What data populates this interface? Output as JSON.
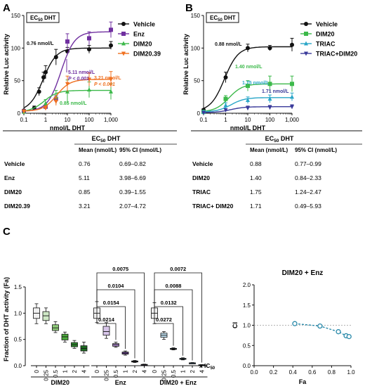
{
  "chart_data": [
    {
      "panel": "A",
      "type": "line",
      "badge": "EC50 DHT",
      "xlabel": "nmol/L DHT",
      "ylabel": "Relative Luc activity",
      "xscale": "log",
      "xlim": [
        0.1,
        1000
      ],
      "ylim": [
        0,
        150
      ],
      "xticks": [
        "0.1",
        "1",
        "10",
        "100",
        "1,000"
      ],
      "yticks": [
        "0",
        "50",
        "100",
        "150"
      ],
      "legend_position": "right",
      "series": [
        {
          "name": "Vehicle",
          "color": "#111111",
          "marker": "circle",
          "x": [
            0.1,
            0.3,
            0.5,
            0.8,
            1,
            3,
            10,
            100,
            1000
          ],
          "y": [
            4,
            8,
            33,
            55,
            63,
            86,
            95,
            98,
            104
          ],
          "err": [
            2,
            3,
            6,
            8,
            10,
            12,
            6,
            6,
            6
          ],
          "ec50": 0.76,
          "top": 100
        },
        {
          "name": "Enz",
          "color": "#7030a0",
          "marker": "square",
          "x": [
            0.1,
            1,
            3,
            10,
            100,
            1000
          ],
          "y": [
            3,
            10,
            22,
            110,
            115,
            128
          ],
          "err": [
            2,
            3,
            5,
            12,
            10,
            12
          ],
          "ec50": 5.11,
          "top": 125
        },
        {
          "name": "DIM20",
          "color": "#3cb94a",
          "marker": "triangle-up",
          "x": [
            0.1,
            1,
            3,
            10,
            100,
            1000
          ],
          "y": [
            2,
            15,
            25,
            33,
            36,
            33
          ],
          "err": [
            2,
            6,
            10,
            18,
            12,
            12
          ],
          "ec50": 0.85,
          "top": 35
        },
        {
          "name": "DIM20.39",
          "color": "#f07020",
          "marker": "triangle-down",
          "x": [
            0.1,
            1,
            3,
            10,
            100,
            1000
          ],
          "y": [
            3,
            8,
            18,
            45,
            52,
            52
          ],
          "err": [
            2,
            3,
            6,
            12,
            10,
            12
          ],
          "ec50": 3.21,
          "top": 52
        }
      ],
      "annotations": [
        {
          "text": "0.76 nmol/L",
          "color": "#111111"
        },
        {
          "text": "5.11 nmol/L",
          "color": "#7030a0"
        },
        {
          "text": "P < 0.001",
          "color": "#7030a0"
        },
        {
          "text": "3.21 nmol/L",
          "color": "#f07020"
        },
        {
          "text": "P < 0.001",
          "color": "#f07020"
        },
        {
          "text": "0.85 nmol/L",
          "color": "#3cb94a"
        }
      ]
    },
    {
      "panel": "B",
      "type": "line",
      "badge": "EC50 DHT",
      "xlabel": "nmol/L DHT",
      "ylabel": "Relative Luc activity",
      "xscale": "log",
      "xlim": [
        0.1,
        1000
      ],
      "ylim": [
        0,
        150
      ],
      "xticks": [
        "0.1",
        "1",
        "10",
        "100",
        "1,000"
      ],
      "yticks": [
        "0",
        "50",
        "100",
        "150"
      ],
      "legend_position": "right",
      "series": [
        {
          "name": "Vehicle",
          "color": "#111111",
          "marker": "circle",
          "x": [
            0.1,
            1,
            10,
            100,
            1000
          ],
          "y": [
            5,
            55,
            100,
            100,
            105
          ],
          "err": [
            2,
            8,
            6,
            4,
            10
          ],
          "ec50": 0.88,
          "top": 102
        },
        {
          "name": "DIM20",
          "color": "#3cb94a",
          "marker": "square",
          "x": [
            0.1,
            1,
            10,
            100,
            1000
          ],
          "y": [
            2,
            22,
            42,
            45,
            45
          ],
          "err": [
            2,
            5,
            8,
            12,
            12
          ],
          "ec50": 1.4,
          "top": 45
        },
        {
          "name": "TRIAC",
          "color": "#2aa6c8",
          "marker": "triangle-up",
          "x": [
            0.1,
            1,
            10,
            100,
            1000
          ],
          "y": [
            2,
            12,
            20,
            22,
            25
          ],
          "err": [
            2,
            4,
            5,
            6,
            6
          ],
          "ec50": 1.75,
          "top": 24
        },
        {
          "name": "TRIAC+DIM20",
          "color": "#3a3a9a",
          "marker": "triangle-down",
          "x": [
            0.1,
            1,
            10,
            100,
            1000
          ],
          "y": [
            1,
            5,
            8,
            9,
            10
          ],
          "err": [
            1,
            2,
            3,
            3,
            3
          ],
          "ec50": 1.71,
          "top": 10
        }
      ],
      "annotations": [
        {
          "text": "0.88 nmol/L",
          "color": "#111111"
        },
        {
          "text": "1.40 nmol/L",
          "color": "#3cb94a"
        },
        {
          "text": "1.75 nmol/L",
          "color": "#2aa6c8"
        },
        {
          "text": "1.71 nmol/L",
          "color": "#3a3a9a"
        }
      ]
    },
    {
      "panel": "A-table",
      "type": "table",
      "title": "EC50 DHT",
      "columns": [
        "",
        "Mean (nmol/L)",
        "95% CI (nmol/L)"
      ],
      "rows": [
        [
          "Vehicle",
          "0.76",
          "0.69–0.82"
        ],
        [
          "Enz",
          "5.11",
          "3.98–6.69"
        ],
        [
          "DIM20",
          "0.85",
          "0.39–1.55"
        ],
        [
          "DIM20.39",
          "3.21",
          "2.07–4.72"
        ]
      ]
    },
    {
      "panel": "B-table",
      "type": "table",
      "title": "EC50 DHT",
      "columns": [
        "",
        "Mean (nmol/L)",
        "95% CI (nmol/L)"
      ],
      "rows": [
        [
          "Vehicle",
          "0.88",
          "0.77–0.99"
        ],
        [
          "DIM20",
          "1.40",
          "0.84–2.33"
        ],
        [
          "TRIAC",
          "1.75",
          "1.24–2.47"
        ],
        [
          "TRIAC+ DIM20",
          "1.71",
          "0.49–5.93"
        ]
      ]
    },
    {
      "panel": "C",
      "type": "bar",
      "subtype": "boxplot",
      "ylabel": "Fraction of DHT activity (Fa)",
      "ylim": [
        0,
        1.5
      ],
      "yticks": [
        "0.0",
        "0.5",
        "1.0",
        "1.5"
      ],
      "x_unit": "x IC50",
      "groups": [
        {
          "name": "DIM20",
          "categories": [
            "0",
            "0.25",
            "0.5",
            "1",
            "2",
            "4"
          ],
          "colors": [
            "#f0f0f0",
            "#cfe8c6",
            "#8fcc7a",
            "#4caa3c",
            "#2e8a2e",
            "#1e6e22"
          ],
          "boxes": [
            {
              "min": 0.8,
              "q1": 0.9,
              "med": 1.0,
              "q3": 1.1,
              "max": 1.18
            },
            {
              "min": 0.8,
              "q1": 0.86,
              "med": 0.95,
              "q3": 1.03,
              "max": 1.1
            },
            {
              "min": 0.63,
              "q1": 0.67,
              "med": 0.72,
              "q3": 0.78,
              "max": 0.84
            },
            {
              "min": 0.45,
              "q1": 0.49,
              "med": 0.55,
              "q3": 0.6,
              "max": 0.64
            },
            {
              "min": 0.33,
              "q1": 0.36,
              "med": 0.4,
              "q3": 0.44,
              "max": 0.48
            },
            {
              "min": 0.24,
              "q1": 0.28,
              "med": 0.33,
              "q3": 0.38,
              "max": 0.45
            }
          ]
        },
        {
          "name": "Enz",
          "categories": [
            "0",
            "0.25",
            "0.5",
            "1",
            "2",
            "4"
          ],
          "colors": [
            "#f0f0f0",
            "#d8c6ea",
            "#b48ed6",
            "#7a4aa8",
            "#4a2a70",
            "#2a1a40"
          ],
          "boxes": [
            {
              "min": 0.82,
              "q1": 0.9,
              "med": 1.0,
              "q3": 1.1,
              "max": 1.22
            },
            {
              "min": 0.52,
              "q1": 0.58,
              "med": 0.65,
              "q3": 0.75,
              "max": 0.82
            },
            {
              "min": 0.35,
              "q1": 0.37,
              "med": 0.4,
              "q3": 0.42,
              "max": 0.45
            },
            {
              "min": 0.2,
              "q1": 0.22,
              "med": 0.24,
              "q3": 0.26,
              "max": 0.28
            },
            {
              "min": 0.06,
              "q1": 0.07,
              "med": 0.08,
              "q3": 0.09,
              "max": 0.1
            },
            {
              "min": 0.01,
              "q1": 0.015,
              "med": 0.02,
              "q3": 0.025,
              "max": 0.03
            }
          ]
        },
        {
          "name": "DIM20 + Enz",
          "categories": [
            "0",
            "0.25",
            "0.5",
            "1",
            "2",
            "4"
          ],
          "colors": [
            "#f0f0f0",
            "#bfe0f0",
            "#5aaed6",
            "#2a7aa8",
            "#1a4a70",
            "#10283c"
          ],
          "boxes": [
            {
              "min": 0.8,
              "q1": 0.9,
              "med": 1.0,
              "q3": 1.1,
              "max": 1.2
            },
            {
              "min": 0.5,
              "q1": 0.54,
              "med": 0.58,
              "q3": 0.62,
              "max": 0.65
            },
            {
              "min": 0.3,
              "q1": 0.31,
              "med": 0.32,
              "q3": 0.33,
              "max": 0.34
            },
            {
              "min": 0.11,
              "q1": 0.12,
              "med": 0.13,
              "q3": 0.14,
              "max": 0.15
            },
            {
              "min": 0.04,
              "q1": 0.045,
              "med": 0.05,
              "q3": 0.055,
              "max": 0.06
            },
            {
              "min": 0.01,
              "q1": 0.012,
              "med": 0.015,
              "q3": 0.018,
              "max": 0.02
            }
          ]
        }
      ],
      "pvalues": [
        {
          "group": "Enz",
          "levels": [
            "0.0214",
            "0.0154",
            "0.0104",
            "0.0075"
          ]
        },
        {
          "group": "DIM20 + Enz",
          "levels": [
            "0.0272",
            "0.0132",
            "0.0088",
            "0.0072"
          ]
        }
      ]
    },
    {
      "panel": "C-right",
      "type": "scatter",
      "title": "DIM20 + Enz",
      "xlabel": "Fa",
      "ylabel": "CI",
      "xlim": [
        0,
        1
      ],
      "ylim": [
        0,
        2
      ],
      "xticks": [
        "0.0",
        "0.2",
        "0.4",
        "0.6",
        "0.8",
        "1.0"
      ],
      "yticks": [
        "0.0",
        "0.5",
        "1.0",
        "1.5",
        "2.0"
      ],
      "reference_line": 1.0,
      "color": "#2a8aaa",
      "x": [
        0.42,
        0.68,
        0.87,
        0.95,
        0.98
      ],
      "y": [
        1.04,
        0.98,
        0.84,
        0.74,
        0.72
      ]
    }
  ],
  "labels": {
    "panel_a": "A",
    "panel_b": "B",
    "panel_c": "C",
    "ec50_badge_main": "EC",
    "ec50_badge_sub": "50",
    "ec50_badge_rest": " DHT",
    "xic50_main": "x IC",
    "xic50_sub": "50"
  }
}
